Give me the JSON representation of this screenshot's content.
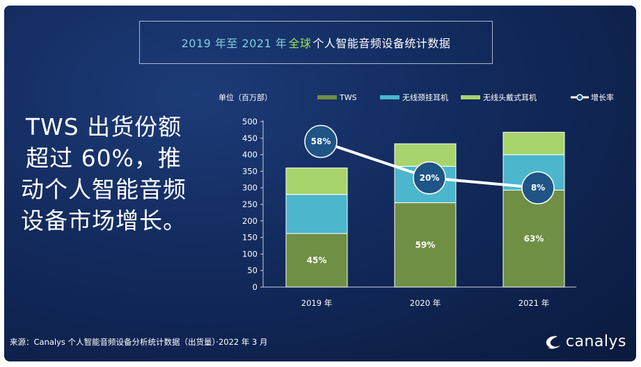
{
  "title": {
    "part1": "2019 年至 2021 年",
    "part2": "全球",
    "part3": "个人智能音频设备统计数据"
  },
  "headline_lines": [
    "TWS 出货份额",
    "超过 60%，推",
    "动个人智能音频",
    "设备市场增长。"
  ],
  "source": "来源：Canalys 个人智能音频设备分析统计数据（出货量）·2022 年 3 月",
  "logo": "canalys",
  "colors": {
    "tws": "#6f8f44",
    "neckband": "#4bb6cc",
    "headphones": "#a7d46c",
    "growth_line": "#ffffff",
    "growth_circle": "#1f5487"
  },
  "chart_data": {
    "type": "bar",
    "stacked": true,
    "unit_label": "单位（百万部）",
    "categories": [
      "2019 年",
      "2020 年",
      "2021 年"
    ],
    "ylim": [
      0,
      500
    ],
    "yticks": [
      0,
      50,
      100,
      150,
      200,
      250,
      300,
      350,
      400,
      450,
      500
    ],
    "series": [
      {
        "name": "TWS",
        "values": [
          162,
          255,
          293
        ],
        "labels": [
          "45%",
          "59%",
          "63%"
        ]
      },
      {
        "name": "无线颈挂耳机",
        "values": [
          118,
          110,
          107
        ]
      },
      {
        "name": "无线头戴式耳机",
        "values": [
          80,
          68,
          68
        ]
      }
    ],
    "growth": {
      "name": "增长率",
      "labels": [
        "58%",
        "20%",
        "8%"
      ],
      "y_positions": [
        440,
        330,
        300
      ]
    }
  }
}
